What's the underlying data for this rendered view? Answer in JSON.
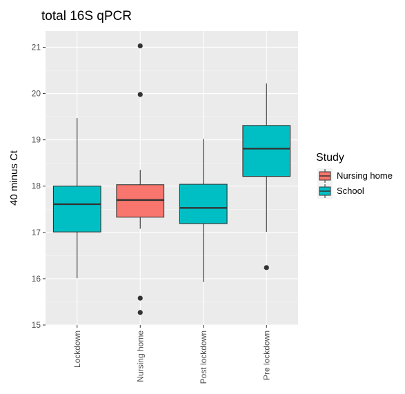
{
  "chart_data": {
    "type": "boxplot",
    "title": "total 16S qPCR",
    "xlabel": "",
    "ylabel": "40 minus Ct",
    "ylim": [
      15,
      21.35
    ],
    "yticks": [
      15,
      16,
      17,
      18,
      19,
      20,
      21
    ],
    "grid": true,
    "legend": {
      "title": "Study",
      "position": "right",
      "entries": [
        {
          "name": "Nursing home",
          "color": "#F8766D"
        },
        {
          "name": "School",
          "color": "#00BFC4"
        }
      ]
    },
    "categories": [
      "Lockdown",
      "Nursing home",
      "Post lockdown",
      "Pre lockdown"
    ],
    "boxes": [
      {
        "category": "Lockdown",
        "study": "School",
        "whisker_low": 16.01,
        "q1": 17.01,
        "median": 17.61,
        "q3": 18.0,
        "whisker_high": 19.47,
        "outliers": []
      },
      {
        "category": "Nursing home",
        "study": "Nursing home",
        "whisker_low": 17.08,
        "q1": 17.33,
        "median": 17.7,
        "q3": 18.03,
        "whisker_high": 18.35,
        "outliers": [
          21.03,
          19.98,
          15.58,
          15.27
        ]
      },
      {
        "category": "Post lockdown",
        "study": "School",
        "whisker_low": 15.93,
        "q1": 17.19,
        "median": 17.53,
        "q3": 18.04,
        "whisker_high": 19.02,
        "outliers": []
      },
      {
        "category": "Pre lockdown",
        "study": "School",
        "whisker_low": 17.01,
        "q1": 18.21,
        "median": 18.81,
        "q3": 19.31,
        "whisker_high": 20.22,
        "outliers": [
          16.24
        ]
      }
    ]
  }
}
